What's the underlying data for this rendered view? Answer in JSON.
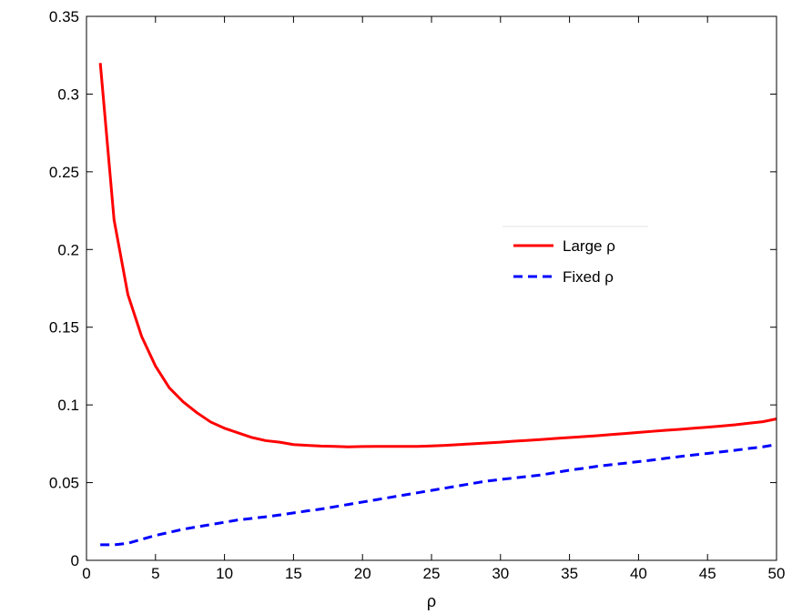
{
  "chart_data": {
    "type": "line",
    "title": "",
    "xlabel": "ρ",
    "ylabel": "",
    "xlim": [
      0,
      50
    ],
    "ylim": [
      0,
      0.35
    ],
    "xticks": [
      0,
      5,
      10,
      15,
      20,
      25,
      30,
      35,
      40,
      45,
      50
    ],
    "yticks": [
      0,
      0.05,
      0.1,
      0.15,
      0.2,
      0.25,
      0.3,
      0.35
    ],
    "xtick_labels": [
      "0",
      "5",
      "10",
      "15",
      "20",
      "25",
      "30",
      "35",
      "40",
      "45",
      "50"
    ],
    "ytick_labels": [
      "0",
      "0.05",
      "0.1",
      "0.15",
      "0.2",
      "0.25",
      "0.3",
      "0.35"
    ],
    "grid": false,
    "legend_position": "center-right",
    "series": [
      {
        "name": "Large ρ",
        "color": "#ff0000",
        "style": "solid",
        "x": [
          1,
          2,
          3,
          4,
          5,
          6,
          7,
          8,
          9,
          10,
          11,
          12,
          13,
          14,
          15,
          16,
          17,
          18,
          19,
          20,
          21,
          22,
          23,
          24,
          25,
          26,
          27,
          28,
          29,
          30,
          31,
          32,
          33,
          34,
          35,
          36,
          37,
          38,
          39,
          40,
          41,
          42,
          43,
          44,
          45,
          46,
          47,
          48,
          49,
          50
        ],
        "y": [
          0.32,
          0.219,
          0.171,
          0.144,
          0.125,
          0.111,
          0.102,
          0.095,
          0.089,
          0.085,
          0.082,
          0.079,
          0.077,
          0.076,
          0.0745,
          0.074,
          0.0735,
          0.0733,
          0.073,
          0.0732,
          0.0733,
          0.0733,
          0.0733,
          0.0733,
          0.0736,
          0.074,
          0.0745,
          0.075,
          0.0755,
          0.076,
          0.0767,
          0.0772,
          0.0778,
          0.0784,
          0.079,
          0.0796,
          0.0802,
          0.0809,
          0.0816,
          0.0823,
          0.083,
          0.0837,
          0.0843,
          0.085,
          0.0857,
          0.0864,
          0.0872,
          0.0882,
          0.0892,
          0.091
        ]
      },
      {
        "name": "Fixed ρ",
        "color": "#0000ff",
        "style": "dashed",
        "x": [
          1,
          2,
          3,
          4,
          5,
          6,
          7,
          8,
          9,
          10,
          11,
          12,
          13,
          14,
          15,
          16,
          17,
          18,
          19,
          20,
          21,
          22,
          23,
          24,
          25,
          26,
          27,
          28,
          29,
          30,
          31,
          32,
          33,
          34,
          35,
          36,
          37,
          38,
          39,
          40,
          41,
          42,
          43,
          44,
          45,
          46,
          47,
          48,
          49,
          50
        ],
        "y": [
          0.01,
          0.01,
          0.011,
          0.0135,
          0.016,
          0.018,
          0.02,
          0.0215,
          0.023,
          0.0245,
          0.026,
          0.027,
          0.028,
          0.0292,
          0.0305,
          0.0318,
          0.033,
          0.0345,
          0.036,
          0.0375,
          0.039,
          0.0405,
          0.042,
          0.0435,
          0.045,
          0.0465,
          0.048,
          0.0495,
          0.051,
          0.052,
          0.053,
          0.054,
          0.055,
          0.0565,
          0.058,
          0.0592,
          0.0605,
          0.0615,
          0.0625,
          0.0635,
          0.0645,
          0.0657,
          0.0668,
          0.0678,
          0.0688,
          0.0698,
          0.0708,
          0.072,
          0.073,
          0.0745
        ]
      }
    ]
  }
}
